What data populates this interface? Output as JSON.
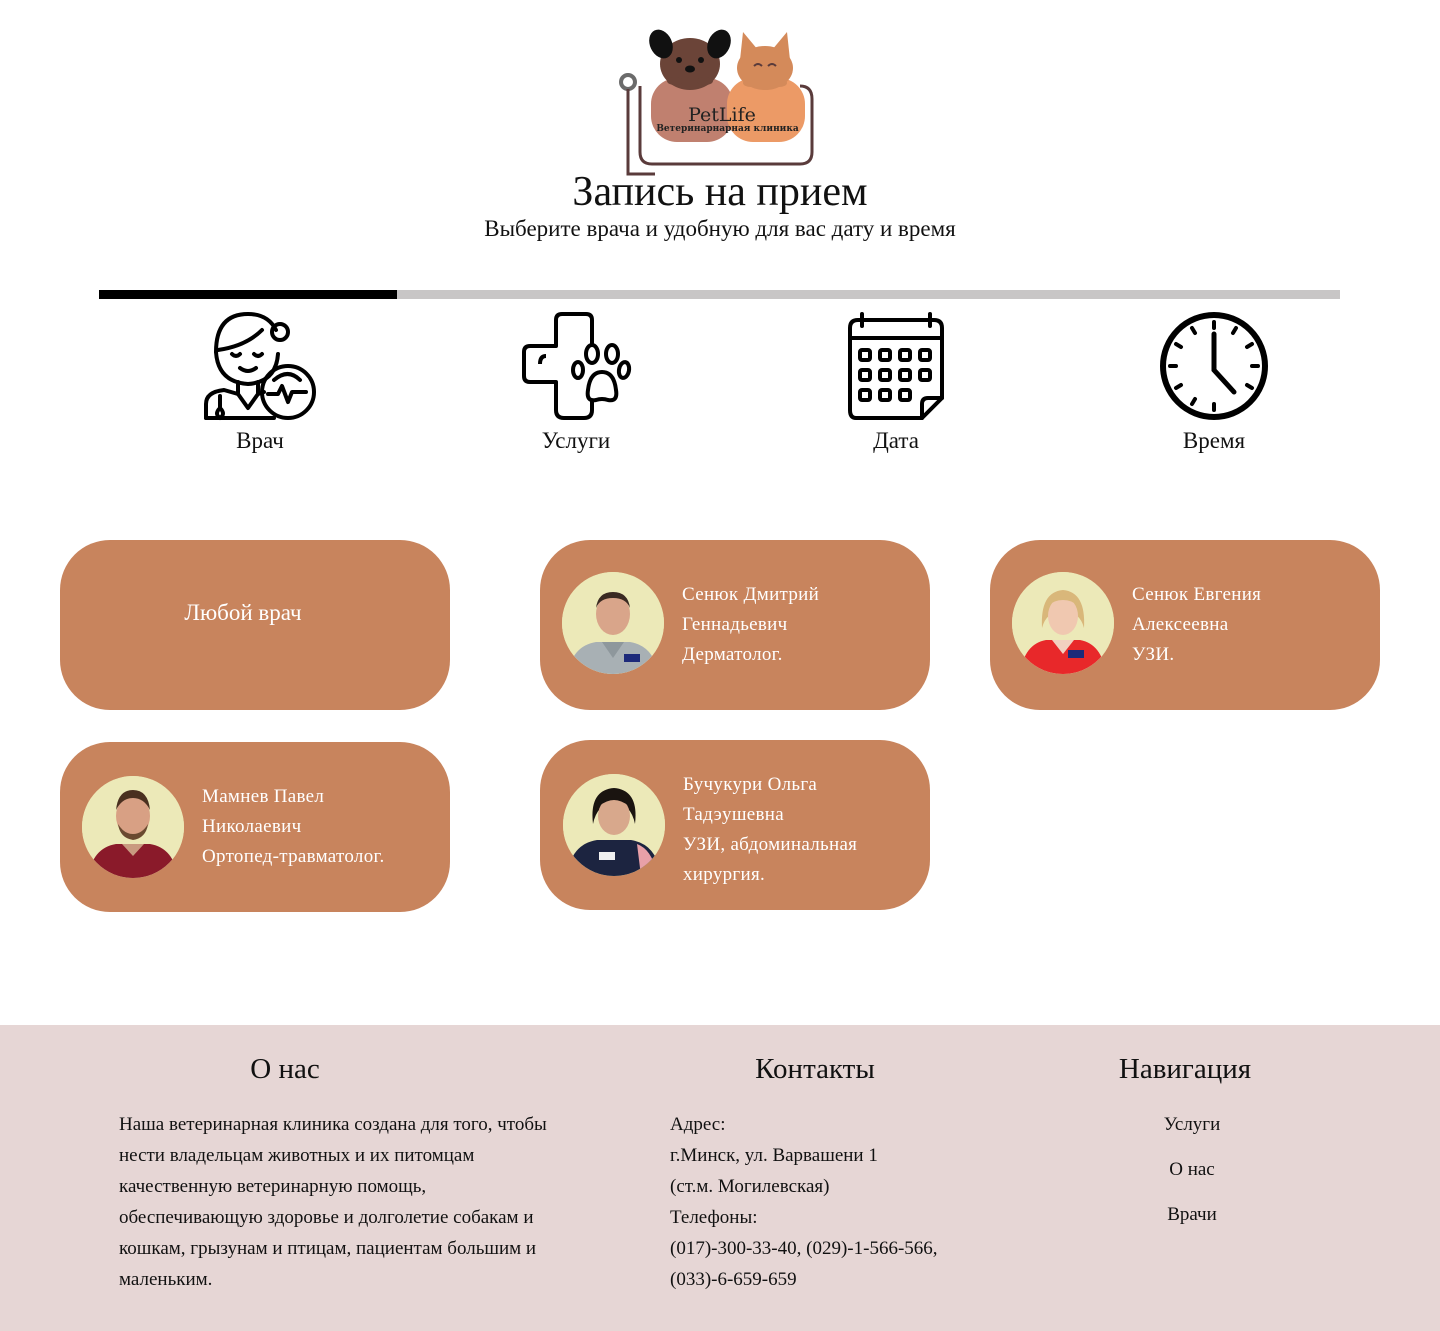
{
  "logo": {
    "name": "PetLife",
    "subtitle": "Ветеринарнарная клиника",
    "colors": {
      "dog": "#6b4438",
      "cat": "#d48a5a",
      "frame": "#5a3b3b"
    }
  },
  "header": {
    "title": "Запись на прием",
    "subtitle": "Выберите врача и удобную для вас дату и время"
  },
  "progress": {
    "current_step": 1,
    "total_steps": 4,
    "fill_fraction": 0.24
  },
  "steps": [
    {
      "label": "Врач",
      "icon": "doctor-icon"
    },
    {
      "label": "Услуги",
      "icon": "medical-paw-icon"
    },
    {
      "label": "Дата",
      "icon": "calendar-icon"
    },
    {
      "label": "Время",
      "icon": "clock-icon"
    }
  ],
  "doctors": {
    "any_label": "Любой врач",
    "list": [
      {
        "line1": "Сенюк Дмитрий",
        "line2": "Геннадьевич",
        "line3": "Дерматолог.",
        "line4": ""
      },
      {
        "line1": "Сенюк Евгения",
        "line2": "Алексеевна",
        "line3": "УЗИ.",
        "line4": ""
      },
      {
        "line1": "Мамнев Павел",
        "line2": "Николаевич",
        "line3": "Ортопед-травматолог.",
        "line4": ""
      },
      {
        "line1": "Бучукури Ольга",
        "line2": "Тадэушевна",
        "line3": "УЗИ, абдоминальная",
        "line4": "хирургия."
      }
    ]
  },
  "footer": {
    "about": {
      "title": "О нас",
      "text": "Наша ветеринарная клиника создана для того, чтобы нести владельцам животных и их питомцам качественную ветеринарную помощь, обеспечивающую здоровье и долголетие собакам и кошкам, грызунам и птицам, пациентам большим и маленьким."
    },
    "contacts": {
      "title": "Контакты",
      "lines": [
        "Адрес:",
        "г.Минск, ул. Варвашени 1",
        "(ст.м. Могилевская)",
        "Телефоны:",
        "(017)-300-33-40, (029)-1-566-566,",
        "(033)-6-659-659"
      ]
    },
    "navigation": {
      "title": "Навигация",
      "items": [
        "Услуги",
        "О нас",
        "Врачи"
      ]
    }
  },
  "colors": {
    "card": "#c8845d",
    "footer_bg": "#e6d6d5",
    "progress_track": "#c8c6c6",
    "progress_fill": "#000000",
    "avatar_bg": "#ece9b8"
  }
}
